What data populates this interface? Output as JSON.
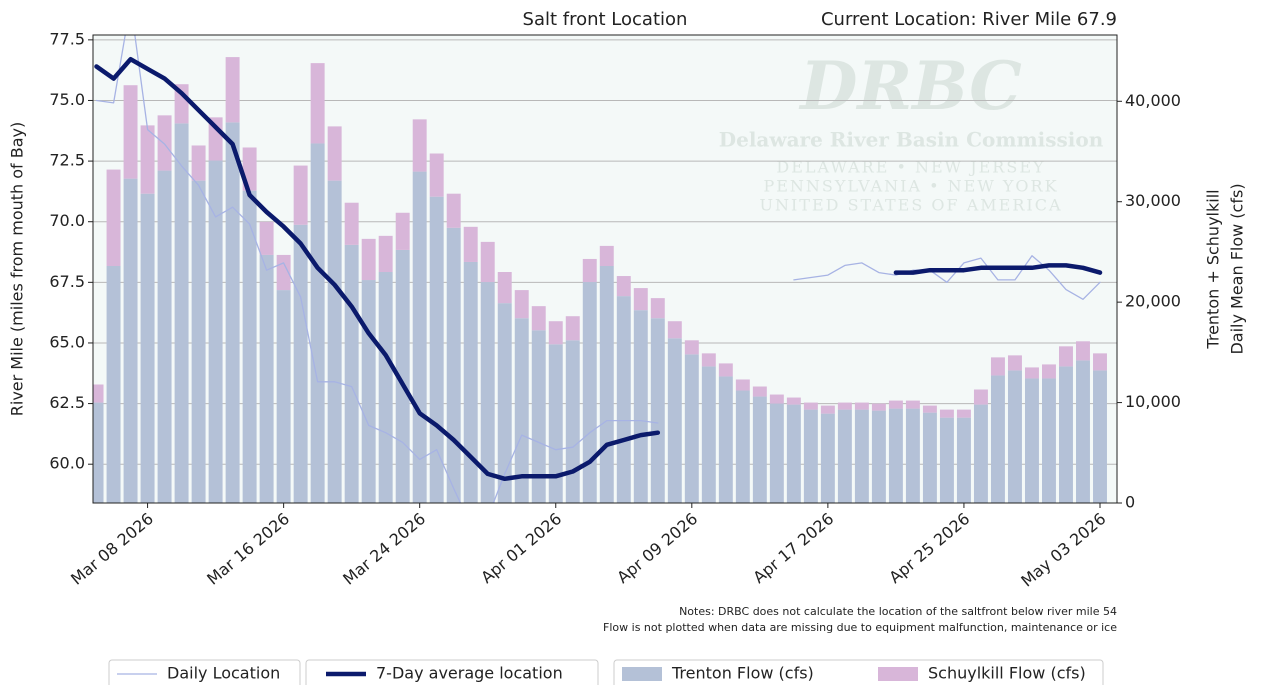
{
  "chart_data": {
    "type": "bar",
    "title": "Salt front Location",
    "subtitle": "Current Location: River Mile 67.9",
    "ylabel": "River Mile (miles from mouth of Bay)",
    "y2label": [
      "Trenton + Schuylkill",
      "Daily Mean Flow (cfs)"
    ],
    "notes": [
      "Notes: DRBC does not calculate the location of the saltfront below river mile 54",
      "Flow is not plotted when data are missing due to equipment malfunction, maintenance or ice"
    ],
    "logo": {
      "mark": "DRBC",
      "name": "Delaware River Basin Commission",
      "lines": [
        "DELAWARE  •  NEW JERSEY",
        "PENNSYLVANIA • NEW YORK",
        "UNITED STATES OF AMERICA"
      ]
    },
    "background": "#f4f9f8",
    "grid": true,
    "stacked": true,
    "x": [
      "2026-03-05",
      "2026-03-06",
      "2026-03-07",
      "2026-03-08",
      "2026-03-09",
      "2026-03-10",
      "2026-03-11",
      "2026-03-12",
      "2026-03-13",
      "2026-03-14",
      "2026-03-15",
      "2026-03-16",
      "2026-03-17",
      "2026-03-18",
      "2026-03-19",
      "2026-03-20",
      "2026-03-21",
      "2026-03-22",
      "2026-03-23",
      "2026-03-24",
      "2026-03-25",
      "2026-03-26",
      "2026-03-27",
      "2026-03-28",
      "2026-03-29",
      "2026-03-30",
      "2026-03-31",
      "2026-04-01",
      "2026-04-02",
      "2026-04-03",
      "2026-04-04",
      "2026-04-05",
      "2026-04-06",
      "2026-04-07",
      "2026-04-08",
      "2026-04-09",
      "2026-04-10",
      "2026-04-11",
      "2026-04-12",
      "2026-04-13",
      "2026-04-14",
      "2026-04-15",
      "2026-04-16",
      "2026-04-17",
      "2026-04-18",
      "2026-04-19",
      "2026-04-20",
      "2026-04-21",
      "2026-04-22",
      "2026-04-23",
      "2026-04-24",
      "2026-04-25",
      "2026-04-26",
      "2026-04-27",
      "2026-04-28",
      "2026-04-29",
      "2026-04-30",
      "2026-05-01",
      "2026-05-02",
      "2026-05-03"
    ],
    "xlim": [
      "2026-03-04T19:00Z",
      "2026-05-04T00:00Z"
    ],
    "xticks": [
      {
        "value": "2026-03-08",
        "label": "Mar 08 2026"
      },
      {
        "value": "2026-03-16",
        "label": "Mar 16 2026"
      },
      {
        "value": "2026-03-24",
        "label": "Mar 24 2026"
      },
      {
        "value": "2026-04-01",
        "label": "Apr 01 2026"
      },
      {
        "value": "2026-04-09",
        "label": "Apr 09 2026"
      },
      {
        "value": "2026-04-17",
        "label": "Apr 17 2026"
      },
      {
        "value": "2026-04-25",
        "label": "Apr 25 2026"
      },
      {
        "value": "2026-05-03",
        "label": "May 03 2026"
      }
    ],
    "ylim": [
      58.4,
      77.7
    ],
    "yticks": [
      {
        "value": 60,
        "label": "60.0"
      },
      62.5,
      {
        "value": 65,
        "label": "65.0"
      },
      67.5,
      {
        "value": 70,
        "label": "70.0"
      },
      72.5,
      {
        "value": 75,
        "label": "75.0"
      },
      77.5
    ],
    "y2lim": [
      0,
      46600
    ],
    "y2ticks": [
      0,
      {
        "value": 10000,
        "label": "10,000"
      },
      {
        "value": 20000,
        "label": "20,000"
      },
      {
        "value": 30000,
        "label": "30,000"
      },
      {
        "value": 40000,
        "label": "40,000"
      }
    ],
    "series": [
      {
        "name": "Trenton Flow (cfs)",
        "type": "bar",
        "axis": "y2",
        "color": "#b4c1d7",
        "values": [
          10000,
          23600,
          32300,
          30800,
          33100,
          37800,
          32100,
          34100,
          37900,
          31100,
          24700,
          21200,
          27700,
          35800,
          32100,
          25700,
          22200,
          23000,
          25200,
          33000,
          30500,
          27400,
          24000,
          22000,
          19900,
          18400,
          17200,
          15800,
          16200,
          22000,
          23600,
          20600,
          19200,
          18400,
          16400,
          14800,
          13600,
          12600,
          11200,
          10600,
          9900,
          9800,
          9300,
          8900,
          9300,
          9300,
          9200,
          9400,
          9400,
          9000,
          8500,
          8500,
          9800,
          12700,
          13200,
          12400,
          12400,
          13600,
          14200,
          13200
        ]
      },
      {
        "name": "Schuylkill Flow (cfs)",
        "type": "bar",
        "axis": "y2",
        "color": "#d8b6d9",
        "values": [
          1800,
          9600,
          9300,
          6800,
          5500,
          3900,
          3500,
          4300,
          6500,
          4300,
          3300,
          3500,
          5900,
          8000,
          5400,
          4200,
          4100,
          3600,
          3700,
          5200,
          4300,
          3400,
          3500,
          4000,
          3100,
          2800,
          2400,
          2300,
          2400,
          2300,
          2000,
          2000,
          2200,
          2000,
          1700,
          1400,
          1300,
          1300,
          1100,
          1000,
          900,
          700,
          700,
          800,
          700,
          700,
          700,
          800,
          800,
          700,
          800,
          800,
          1500,
          1800,
          1500,
          1100,
          1400,
          2000,
          1900,
          1700
        ]
      },
      {
        "name": "Daily Location",
        "type": "line",
        "color": "#a7b3e4",
        "width": 1.3,
        "values": [
          75.0,
          74.9,
          79.0,
          73.8,
          73.2,
          72.3,
          71.5,
          70.2,
          70.6,
          69.9,
          68.0,
          68.3,
          66.9,
          63.4,
          63.4,
          63.2,
          61.6,
          61.3,
          60.9,
          60.2,
          60.6,
          59.0,
          57.5,
          57.8,
          59.6,
          61.2,
          60.9,
          60.6,
          60.7,
          61.3,
          61.8,
          61.8,
          61.8,
          61.7,
          null,
          null,
          null,
          null,
          null,
          null,
          null,
          67.6,
          67.7,
          67.8,
          68.2,
          68.3,
          67.9,
          67.8,
          68.0,
          68.0,
          67.5,
          68.3,
          68.5,
          67.6,
          67.6,
          68.6,
          68.0,
          67.2,
          66.8,
          67.5
        ]
      },
      {
        "name": "7-Day average location",
        "type": "line",
        "color": "#0b1a6c",
        "width": 4.5,
        "values": [
          76.4,
          75.9,
          76.7,
          76.3,
          75.9,
          75.3,
          74.6,
          73.9,
          73.2,
          71.1,
          70.4,
          69.8,
          69.1,
          68.1,
          67.4,
          66.5,
          65.4,
          64.5,
          63.3,
          62.1,
          61.6,
          61.0,
          60.3,
          59.6,
          59.4,
          59.5,
          59.5,
          59.5,
          59.7,
          60.1,
          60.8,
          61.0,
          61.2,
          61.3,
          null,
          null,
          null,
          null,
          null,
          null,
          null,
          null,
          null,
          null,
          null,
          null,
          null,
          67.9,
          67.9,
          68.0,
          68.0,
          68.0,
          68.1,
          68.1,
          68.1,
          68.1,
          68.2,
          68.2,
          68.1,
          67.9
        ]
      }
    ]
  }
}
